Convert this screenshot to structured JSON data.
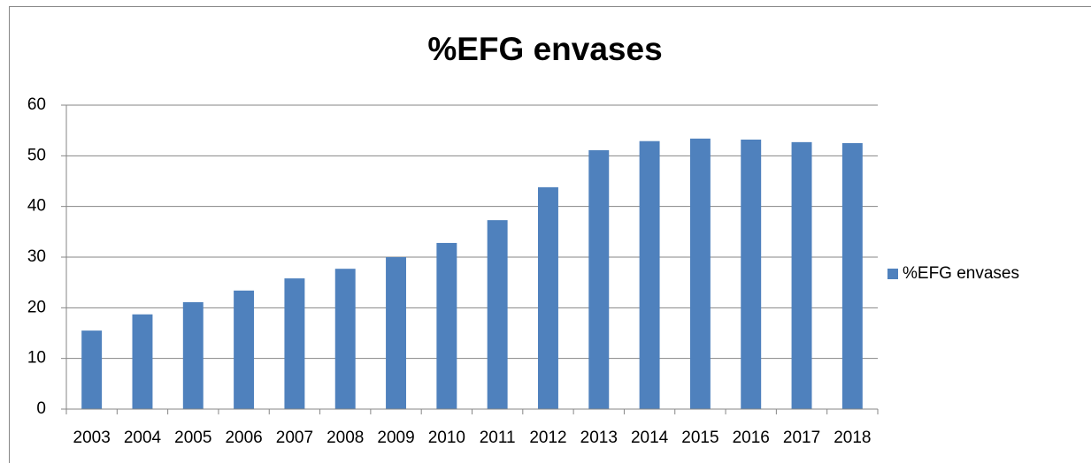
{
  "chart_data": {
    "type": "bar",
    "title": "%EFG envases",
    "categories": [
      "2003",
      "2004",
      "2005",
      "2006",
      "2007",
      "2008",
      "2009",
      "2010",
      "2011",
      "2012",
      "2013",
      "2014",
      "2015",
      "2016",
      "2017",
      "2018"
    ],
    "series": [
      {
        "name": "%EFG envases",
        "color": "#4f81bd",
        "values": [
          15.5,
          18.7,
          21.1,
          23.4,
          25.8,
          27.7,
          30.0,
          32.8,
          37.3,
          43.8,
          51.1,
          52.9,
          53.4,
          53.2,
          52.7,
          52.5
        ]
      }
    ],
    "ylim": [
      0,
      60
    ],
    "yticks": [
      0,
      10,
      20,
      30,
      40,
      50,
      60
    ],
    "grid": true,
    "legend": "right"
  }
}
